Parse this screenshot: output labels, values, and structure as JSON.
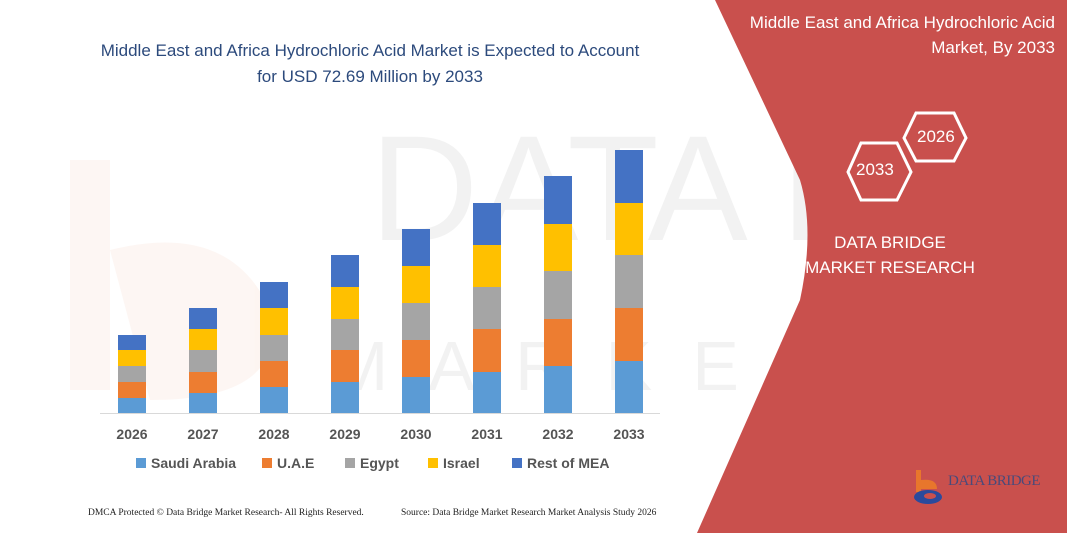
{
  "header": {
    "title": "Middle East and Africa Hydrochloric Acid Market is Expected to Account for USD 72.69 Million by 2033"
  },
  "side_panel": {
    "title": "Middle East and Africa Hydrochloric Acid Market, By 2033",
    "hex_years": [
      "2033",
      "2026"
    ],
    "brand": "DATA BRIDGE MARKET RESEARCH",
    "logo_text": "DATA BRIDGE",
    "background_color": "#c9504d"
  },
  "footer": {
    "copyright": "DMCA Protected © Data Bridge Market Research- All Rights Reserved.",
    "source": "Source: Data Bridge Market Research Market Analysis Study 2026"
  },
  "chart_data": {
    "type": "bar",
    "stacked": true,
    "categories": [
      "2026",
      "2027",
      "2028",
      "2029",
      "2030",
      "2031",
      "2032",
      "2033"
    ],
    "series": [
      {
        "name": "Saudi Arabia",
        "color": "#5b9bd5",
        "values": [
          15,
          20,
          26,
          31,
          36,
          41,
          47,
          52
        ]
      },
      {
        "name": "U.A.E",
        "color": "#ed7d31",
        "values": [
          16,
          21,
          26,
          32,
          37,
          43,
          47,
          53
        ]
      },
      {
        "name": "Egypt",
        "color": "#a5a5a5",
        "values": [
          16,
          22,
          26,
          31,
          37,
          42,
          48,
          53
        ]
      },
      {
        "name": "Israel",
        "color": "#ffc000",
        "values": [
          16,
          21,
          27,
          32,
          37,
          42,
          47,
          52
        ]
      },
      {
        "name": "Rest of MEA",
        "color": "#4472c4",
        "values": [
          15,
          21,
          26,
          32,
          37,
          42,
          48,
          53
        ]
      }
    ],
    "ylim": [
      0,
      263
    ],
    "y_axis_visible": false,
    "grid": false,
    "legend_position": "bottom"
  }
}
